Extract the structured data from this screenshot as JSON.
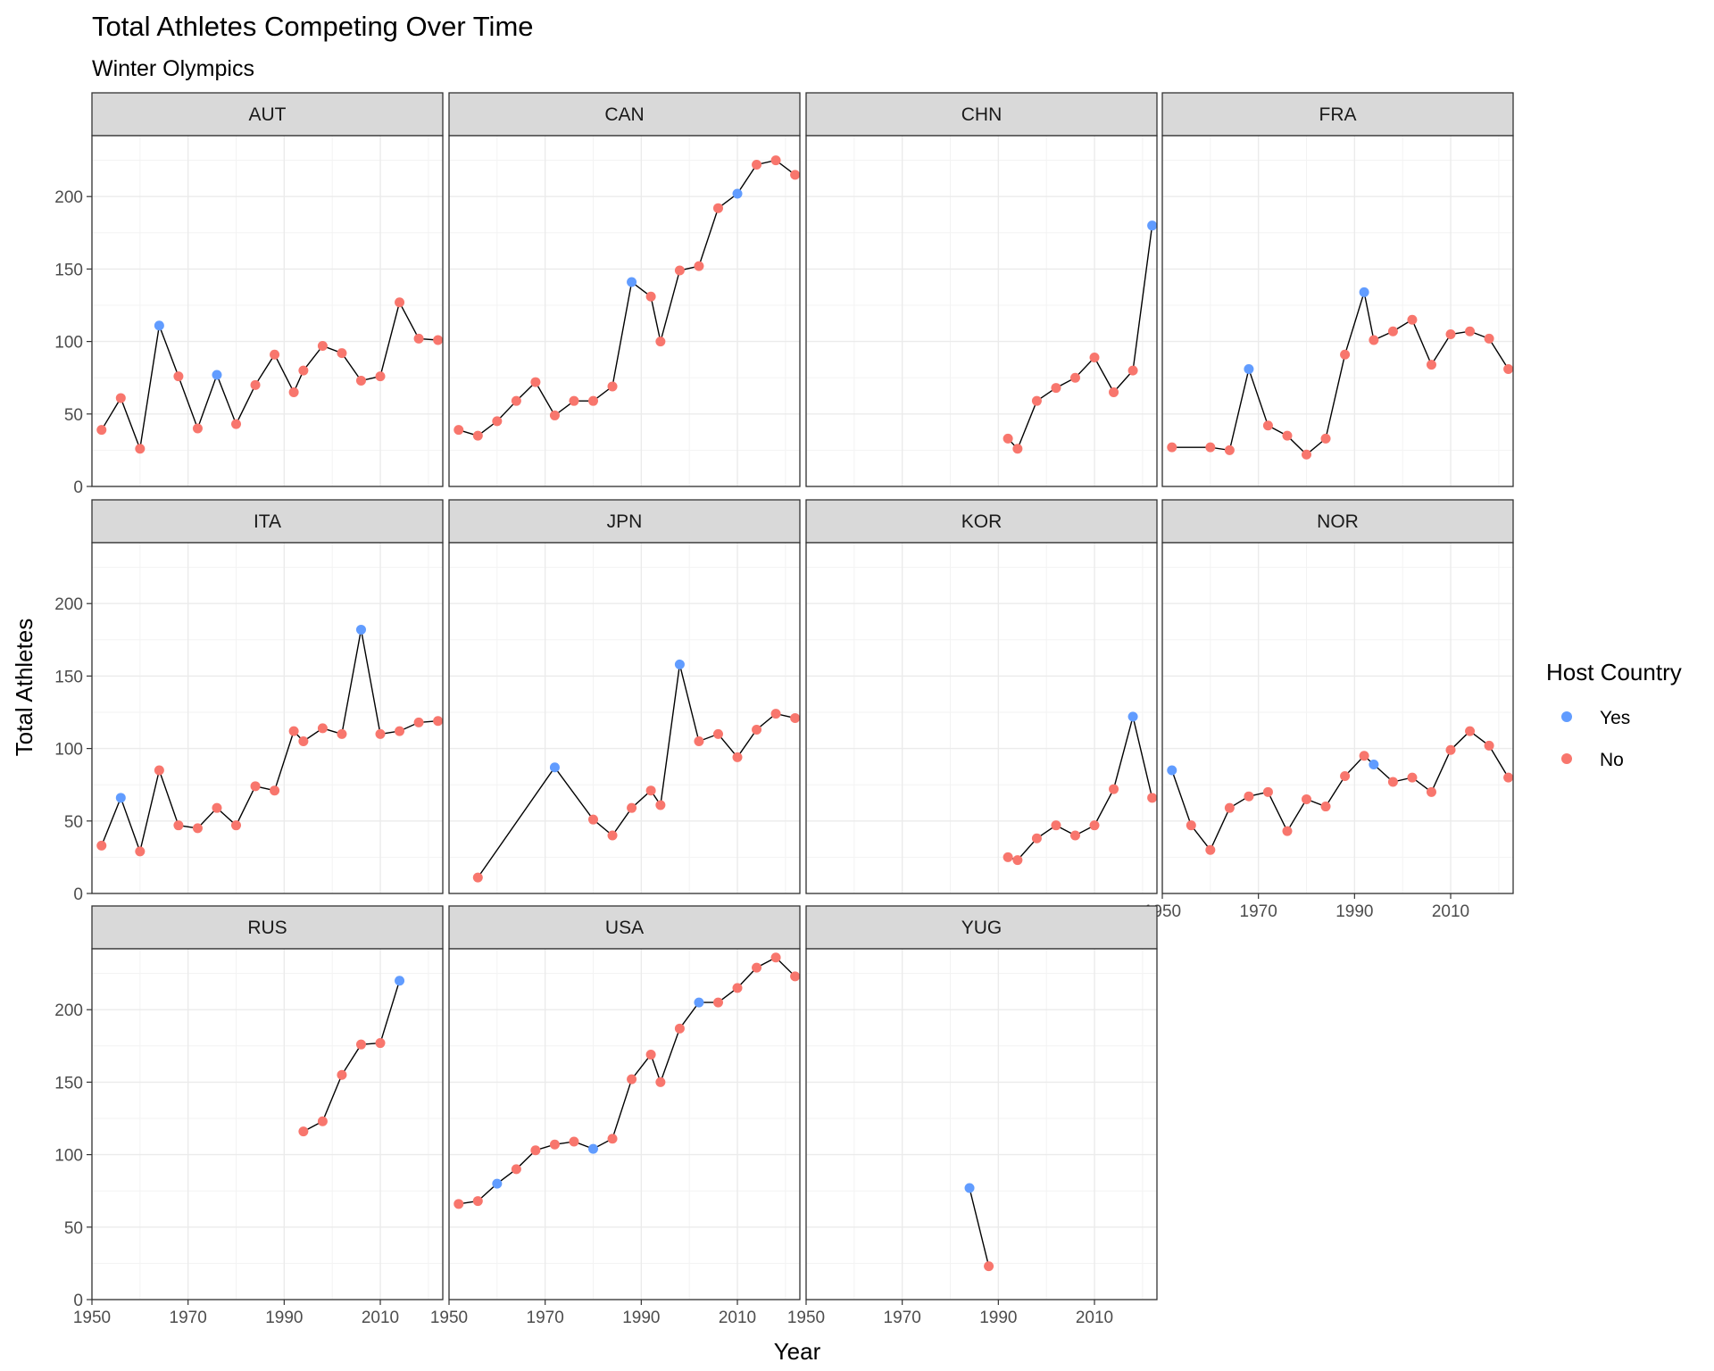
{
  "chart_data": {
    "type": "scatter",
    "title": "Total Athletes Competing Over Time",
    "subtitle": "Winter Olympics",
    "xlabel": "Year",
    "ylabel": "Total Athletes",
    "xlim": [
      1950,
      2023
    ],
    "ylim": [
      0,
      242
    ],
    "x_ticks": [
      1950,
      1970,
      1990,
      2010
    ],
    "y_ticks": [
      0,
      50,
      100,
      150,
      200
    ],
    "grid": true,
    "connected": true,
    "facet_columns": 4,
    "legend": {
      "title": "Host Country",
      "placement": "right",
      "items": [
        {
          "key": "Yes",
          "label": "Yes",
          "color": "#619CFF"
        },
        {
          "key": "No",
          "label": "No",
          "color": "#F8766D"
        }
      ]
    },
    "colors": {
      "line": "#000000",
      "strip_fill": "#d9d9d9",
      "grid": "#ebebeb",
      "panel_border": "#333333"
    },
    "panels": [
      {
        "label": "AUT",
        "points": [
          {
            "x": 1952,
            "y": 39,
            "host": "No"
          },
          {
            "x": 1956,
            "y": 61,
            "host": "No"
          },
          {
            "x": 1960,
            "y": 26,
            "host": "No"
          },
          {
            "x": 1964,
            "y": 111,
            "host": "Yes"
          },
          {
            "x": 1968,
            "y": 76,
            "host": "No"
          },
          {
            "x": 1972,
            "y": 40,
            "host": "No"
          },
          {
            "x": 1976,
            "y": 77,
            "host": "Yes"
          },
          {
            "x": 1980,
            "y": 43,
            "host": "No"
          },
          {
            "x": 1984,
            "y": 70,
            "host": "No"
          },
          {
            "x": 1988,
            "y": 91,
            "host": "No"
          },
          {
            "x": 1992,
            "y": 65,
            "host": "No"
          },
          {
            "x": 1994,
            "y": 80,
            "host": "No"
          },
          {
            "x": 1998,
            "y": 97,
            "host": "No"
          },
          {
            "x": 2002,
            "y": 92,
            "host": "No"
          },
          {
            "x": 2006,
            "y": 73,
            "host": "No"
          },
          {
            "x": 2010,
            "y": 76,
            "host": "No"
          },
          {
            "x": 2014,
            "y": 127,
            "host": "No"
          },
          {
            "x": 2018,
            "y": 102,
            "host": "No"
          },
          {
            "x": 2022,
            "y": 101,
            "host": "No"
          }
        ]
      },
      {
        "label": "CAN",
        "points": [
          {
            "x": 1952,
            "y": 39,
            "host": "No"
          },
          {
            "x": 1956,
            "y": 35,
            "host": "No"
          },
          {
            "x": 1960,
            "y": 45,
            "host": "No"
          },
          {
            "x": 1964,
            "y": 59,
            "host": "No"
          },
          {
            "x": 1968,
            "y": 72,
            "host": "No"
          },
          {
            "x": 1972,
            "y": 49,
            "host": "No"
          },
          {
            "x": 1976,
            "y": 59,
            "host": "No"
          },
          {
            "x": 1980,
            "y": 59,
            "host": "No"
          },
          {
            "x": 1984,
            "y": 69,
            "host": "No"
          },
          {
            "x": 1988,
            "y": 141,
            "host": "Yes"
          },
          {
            "x": 1992,
            "y": 131,
            "host": "No"
          },
          {
            "x": 1994,
            "y": 100,
            "host": "No"
          },
          {
            "x": 1998,
            "y": 149,
            "host": "No"
          },
          {
            "x": 2002,
            "y": 152,
            "host": "No"
          },
          {
            "x": 2006,
            "y": 192,
            "host": "No"
          },
          {
            "x": 2010,
            "y": 202,
            "host": "Yes"
          },
          {
            "x": 2014,
            "y": 222,
            "host": "No"
          },
          {
            "x": 2018,
            "y": 225,
            "host": "No"
          },
          {
            "x": 2022,
            "y": 215,
            "host": "No"
          }
        ]
      },
      {
        "label": "CHN",
        "points": [
          {
            "x": 1992,
            "y": 33,
            "host": "No"
          },
          {
            "x": 1994,
            "y": 26,
            "host": "No"
          },
          {
            "x": 1998,
            "y": 59,
            "host": "No"
          },
          {
            "x": 2002,
            "y": 68,
            "host": "No"
          },
          {
            "x": 2006,
            "y": 75,
            "host": "No"
          },
          {
            "x": 2010,
            "y": 89,
            "host": "No"
          },
          {
            "x": 2014,
            "y": 65,
            "host": "No"
          },
          {
            "x": 2018,
            "y": 80,
            "host": "No"
          },
          {
            "x": 2022,
            "y": 180,
            "host": "Yes"
          }
        ]
      },
      {
        "label": "FRA",
        "points": [
          {
            "x": 1952,
            "y": 27,
            "host": "No"
          },
          {
            "x": 1960,
            "y": 27,
            "host": "No"
          },
          {
            "x": 1964,
            "y": 25,
            "host": "No"
          },
          {
            "x": 1968,
            "y": 81,
            "host": "Yes"
          },
          {
            "x": 1972,
            "y": 42,
            "host": "No"
          },
          {
            "x": 1976,
            "y": 35,
            "host": "No"
          },
          {
            "x": 1980,
            "y": 22,
            "host": "No"
          },
          {
            "x": 1984,
            "y": 33,
            "host": "No"
          },
          {
            "x": 1988,
            "y": 91,
            "host": "No"
          },
          {
            "x": 1992,
            "y": 134,
            "host": "Yes"
          },
          {
            "x": 1994,
            "y": 101,
            "host": "No"
          },
          {
            "x": 1998,
            "y": 107,
            "host": "No"
          },
          {
            "x": 2002,
            "y": 115,
            "host": "No"
          },
          {
            "x": 2006,
            "y": 84,
            "host": "No"
          },
          {
            "x": 2010,
            "y": 105,
            "host": "No"
          },
          {
            "x": 2014,
            "y": 107,
            "host": "No"
          },
          {
            "x": 2018,
            "y": 102,
            "host": "No"
          },
          {
            "x": 2022,
            "y": 81,
            "host": "No"
          }
        ]
      },
      {
        "label": "ITA",
        "points": [
          {
            "x": 1952,
            "y": 33,
            "host": "No"
          },
          {
            "x": 1956,
            "y": 66,
            "host": "Yes"
          },
          {
            "x": 1960,
            "y": 29,
            "host": "No"
          },
          {
            "x": 1964,
            "y": 85,
            "host": "No"
          },
          {
            "x": 1968,
            "y": 47,
            "host": "No"
          },
          {
            "x": 1972,
            "y": 45,
            "host": "No"
          },
          {
            "x": 1976,
            "y": 59,
            "host": "No"
          },
          {
            "x": 1980,
            "y": 47,
            "host": "No"
          },
          {
            "x": 1984,
            "y": 74,
            "host": "No"
          },
          {
            "x": 1988,
            "y": 71,
            "host": "No"
          },
          {
            "x": 1992,
            "y": 112,
            "host": "No"
          },
          {
            "x": 1994,
            "y": 105,
            "host": "No"
          },
          {
            "x": 1998,
            "y": 114,
            "host": "No"
          },
          {
            "x": 2002,
            "y": 110,
            "host": "No"
          },
          {
            "x": 2006,
            "y": 182,
            "host": "Yes"
          },
          {
            "x": 2010,
            "y": 110,
            "host": "No"
          },
          {
            "x": 2014,
            "y": 112,
            "host": "No"
          },
          {
            "x": 2018,
            "y": 118,
            "host": "No"
          },
          {
            "x": 2022,
            "y": 119,
            "host": "No"
          }
        ]
      },
      {
        "label": "JPN",
        "points": [
          {
            "x": 1956,
            "y": 11,
            "host": "No"
          },
          {
            "x": 1972,
            "y": 87,
            "host": "Yes"
          },
          {
            "x": 1980,
            "y": 51,
            "host": "No"
          },
          {
            "x": 1984,
            "y": 40,
            "host": "No"
          },
          {
            "x": 1988,
            "y": 59,
            "host": "No"
          },
          {
            "x": 1992,
            "y": 71,
            "host": "No"
          },
          {
            "x": 1994,
            "y": 61,
            "host": "No"
          },
          {
            "x": 1998,
            "y": 158,
            "host": "Yes"
          },
          {
            "x": 2002,
            "y": 105,
            "host": "No"
          },
          {
            "x": 2006,
            "y": 110,
            "host": "No"
          },
          {
            "x": 2010,
            "y": 94,
            "host": "No"
          },
          {
            "x": 2014,
            "y": 113,
            "host": "No"
          },
          {
            "x": 2018,
            "y": 124,
            "host": "No"
          },
          {
            "x": 2022,
            "y": 121,
            "host": "No"
          }
        ]
      },
      {
        "label": "KOR",
        "points": [
          {
            "x": 1992,
            "y": 25,
            "host": "No"
          },
          {
            "x": 1994,
            "y": 23,
            "host": "No"
          },
          {
            "x": 1998,
            "y": 38,
            "host": "No"
          },
          {
            "x": 2002,
            "y": 47,
            "host": "No"
          },
          {
            "x": 2006,
            "y": 40,
            "host": "No"
          },
          {
            "x": 2010,
            "y": 47,
            "host": "No"
          },
          {
            "x": 2014,
            "y": 72,
            "host": "No"
          },
          {
            "x": 2018,
            "y": 122,
            "host": "Yes"
          },
          {
            "x": 2022,
            "y": 66,
            "host": "No"
          }
        ]
      },
      {
        "label": "NOR",
        "points": [
          {
            "x": 1952,
            "y": 85,
            "host": "Yes"
          },
          {
            "x": 1956,
            "y": 47,
            "host": "No"
          },
          {
            "x": 1960,
            "y": 30,
            "host": "No"
          },
          {
            "x": 1964,
            "y": 59,
            "host": "No"
          },
          {
            "x": 1968,
            "y": 67,
            "host": "No"
          },
          {
            "x": 1972,
            "y": 70,
            "host": "No"
          },
          {
            "x": 1976,
            "y": 43,
            "host": "No"
          },
          {
            "x": 1980,
            "y": 65,
            "host": "No"
          },
          {
            "x": 1984,
            "y": 60,
            "host": "No"
          },
          {
            "x": 1988,
            "y": 81,
            "host": "No"
          },
          {
            "x": 1992,
            "y": 95,
            "host": "No"
          },
          {
            "x": 1994,
            "y": 89,
            "host": "Yes"
          },
          {
            "x": 1998,
            "y": 77,
            "host": "No"
          },
          {
            "x": 2002,
            "y": 80,
            "host": "No"
          },
          {
            "x": 2006,
            "y": 70,
            "host": "No"
          },
          {
            "x": 2010,
            "y": 99,
            "host": "No"
          },
          {
            "x": 2014,
            "y": 112,
            "host": "No"
          },
          {
            "x": 2018,
            "y": 102,
            "host": "No"
          },
          {
            "x": 2022,
            "y": 80,
            "host": "No"
          }
        ]
      },
      {
        "label": "RUS",
        "points": [
          {
            "x": 1994,
            "y": 116,
            "host": "No"
          },
          {
            "x": 1998,
            "y": 123,
            "host": "No"
          },
          {
            "x": 2002,
            "y": 155,
            "host": "No"
          },
          {
            "x": 2006,
            "y": 176,
            "host": "No"
          },
          {
            "x": 2010,
            "y": 177,
            "host": "No"
          },
          {
            "x": 2014,
            "y": 220,
            "host": "Yes"
          }
        ]
      },
      {
        "label": "USA",
        "points": [
          {
            "x": 1952,
            "y": 66,
            "host": "No"
          },
          {
            "x": 1956,
            "y": 68,
            "host": "No"
          },
          {
            "x": 1960,
            "y": 80,
            "host": "Yes"
          },
          {
            "x": 1964,
            "y": 90,
            "host": "No"
          },
          {
            "x": 1968,
            "y": 103,
            "host": "No"
          },
          {
            "x": 1972,
            "y": 107,
            "host": "No"
          },
          {
            "x": 1976,
            "y": 109,
            "host": "No"
          },
          {
            "x": 1980,
            "y": 104,
            "host": "Yes"
          },
          {
            "x": 1984,
            "y": 111,
            "host": "No"
          },
          {
            "x": 1988,
            "y": 152,
            "host": "No"
          },
          {
            "x": 1992,
            "y": 169,
            "host": "No"
          },
          {
            "x": 1994,
            "y": 150,
            "host": "No"
          },
          {
            "x": 1998,
            "y": 187,
            "host": "No"
          },
          {
            "x": 2002,
            "y": 205,
            "host": "Yes"
          },
          {
            "x": 2006,
            "y": 205,
            "host": "No"
          },
          {
            "x": 2010,
            "y": 215,
            "host": "No"
          },
          {
            "x": 2014,
            "y": 229,
            "host": "No"
          },
          {
            "x": 2018,
            "y": 236,
            "host": "No"
          },
          {
            "x": 2022,
            "y": 223,
            "host": "No"
          }
        ]
      },
      {
        "label": "YUG",
        "points": [
          {
            "x": 1984,
            "y": 77,
            "host": "Yes"
          },
          {
            "x": 1988,
            "y": 23,
            "host": "No"
          }
        ]
      }
    ]
  }
}
